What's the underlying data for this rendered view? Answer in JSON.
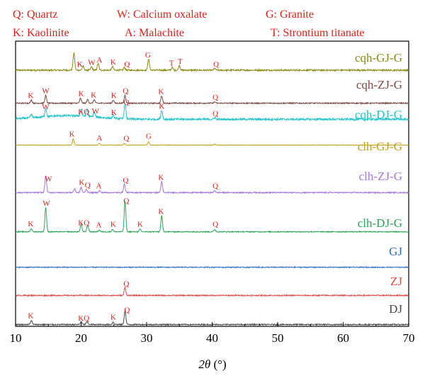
{
  "legend": [
    {
      "abbr": "Q",
      "text": "Q: Quartz"
    },
    {
      "abbr": "W",
      "text": "W: Calcium oxalate"
    },
    {
      "abbr": "G",
      "text": "G: Granite"
    },
    {
      "abbr": "K",
      "text": "K: Kaolinite"
    },
    {
      "abbr": "A",
      "text": "A: Malachite"
    },
    {
      "abbr": "T",
      "text": "T: Strontium titanate"
    }
  ],
  "colors": {
    "legend_text": "#e0201a",
    "marker_text": "#e0201a",
    "axis": "#000000"
  },
  "chart_data": {
    "type": "line",
    "title": "",
    "xlabel_parts": {
      "symbol": "2θ",
      "unit": " (°)"
    },
    "ylabel": "",
    "xlim": [
      10,
      70
    ],
    "xticks": [
      10,
      20,
      30,
      40,
      50,
      60,
      70
    ],
    "xtick_labels": [
      "10",
      "20",
      "30",
      "40",
      "50",
      "60",
      "70"
    ],
    "stacked_offset": true,
    "grid": false,
    "series": [
      {
        "name": "cqh-GJ-G",
        "color": "#8a8a16",
        "baseline": 0.8,
        "scale": 1.0,
        "peaks": [
          [
            18.9,
            5.6
          ],
          [
            20.3,
            1.3
          ],
          [
            21.6,
            1.1
          ],
          [
            22.6,
            2.2
          ],
          [
            24.8,
            1.2
          ],
          [
            26.6,
            0.9
          ],
          [
            30.3,
            3.6
          ],
          [
            33.9,
            0.9
          ],
          [
            35.0,
            1.5
          ],
          [
            40.4,
            0.6
          ]
        ],
        "markers": [
          {
            "x": 19.8,
            "label": "K"
          },
          {
            "x": 21.6,
            "label": "W"
          },
          {
            "x": 22.8,
            "label": "A"
          },
          {
            "x": 24.9,
            "label": "K"
          },
          {
            "x": 27.0,
            "label": "Q"
          },
          {
            "x": 30.2,
            "label": "G"
          },
          {
            "x": 33.8,
            "label": "T"
          },
          {
            "x": 35.1,
            "label": "T"
          },
          {
            "x": 40.6,
            "label": "Q"
          }
        ]
      },
      {
        "name": "cqh-ZJ-G",
        "color": "#7a4a44",
        "baseline": 0.6,
        "scale": 1.0,
        "peaks": [
          [
            12.4,
            1.0
          ],
          [
            14.6,
            2.5
          ],
          [
            19.9,
            1.6
          ],
          [
            21.0,
            1.2
          ],
          [
            22.0,
            1.1
          ],
          [
            24.9,
            1.0
          ],
          [
            26.7,
            2.6
          ],
          [
            32.3,
            2.3
          ],
          [
            40.4,
            0.4
          ]
        ],
        "markers": [
          {
            "x": 12.3,
            "label": "K"
          },
          {
            "x": 14.6,
            "label": "W"
          },
          {
            "x": 20.0,
            "label": "K"
          },
          {
            "x": 21.9,
            "label": "K"
          },
          {
            "x": 25.0,
            "label": "K"
          },
          {
            "x": 26.8,
            "label": "Q"
          },
          {
            "x": 32.2,
            "label": "K"
          },
          {
            "x": 40.5,
            "label": "Q"
          }
        ]
      },
      {
        "name": "cqh-DJ-G",
        "color": "#22c4c8",
        "baseline": 1.1,
        "scale": 1.0,
        "peaks": [
          [
            12.4,
            1.0
          ],
          [
            14.6,
            2.8
          ],
          [
            20.0,
            2.2
          ],
          [
            20.9,
            2.5
          ],
          [
            22.0,
            1.6
          ],
          [
            24.9,
            1.0
          ],
          [
            26.7,
            5.0
          ],
          [
            32.3,
            3.0
          ],
          [
            40.4,
            0.6
          ]
        ],
        "markers": [
          {
            "x": 14.6,
            "label": "W"
          },
          {
            "x": 20.4,
            "label": "KQ"
          },
          {
            "x": 22.2,
            "label": "W"
          },
          {
            "x": 25.0,
            "label": "K"
          },
          {
            "x": 26.9,
            "label": "Q"
          },
          {
            "x": 32.3,
            "label": "K"
          },
          {
            "x": 40.5,
            "label": "Q"
          }
        ]
      },
      {
        "name": "clh-GJ-G",
        "color": "#c59d18",
        "baseline": 0.2,
        "scale": 1.0,
        "peaks": [
          [
            18.8,
            2.0
          ],
          [
            22.8,
            0.5
          ],
          [
            26.6,
            0.5
          ],
          [
            30.3,
            1.1
          ],
          [
            40.4,
            0.3
          ]
        ],
        "markers": [
          {
            "x": 18.6,
            "label": "K"
          },
          {
            "x": 22.8,
            "label": "A"
          },
          {
            "x": 26.9,
            "label": "Q"
          },
          {
            "x": 30.3,
            "label": "G"
          }
        ]
      },
      {
        "name": "clh-ZJ-G",
        "color": "#a378d8",
        "baseline": 0.6,
        "scale": 1.0,
        "peaks": [
          [
            14.6,
            5.5
          ],
          [
            19.0,
            1.2
          ],
          [
            20.0,
            1.8
          ],
          [
            20.8,
            1.0
          ],
          [
            22.8,
            0.6
          ],
          [
            26.6,
            2.8
          ],
          [
            32.3,
            3.5
          ],
          [
            40.4,
            0.6
          ]
        ],
        "markers": [
          {
            "x": 15.0,
            "label": "W"
          },
          {
            "x": 20.1,
            "label": "K"
          },
          {
            "x": 21.0,
            "label": "Q"
          },
          {
            "x": 22.7,
            "label": "A"
          },
          {
            "x": 26.8,
            "label": "Q"
          },
          {
            "x": 32.2,
            "label": "K"
          },
          {
            "x": 40.5,
            "label": "Q"
          }
        ]
      },
      {
        "name": "clh-DJ-G",
        "color": "#2aa55a",
        "baseline": 0.5,
        "scale": 1.0,
        "peaks": [
          [
            12.4,
            1.0
          ],
          [
            14.6,
            8.0
          ],
          [
            20.0,
            2.4
          ],
          [
            21.0,
            2.2
          ],
          [
            22.8,
            0.6
          ],
          [
            24.8,
            0.8
          ],
          [
            26.7,
            10.0
          ],
          [
            29.0,
            0.8
          ],
          [
            32.3,
            5.2
          ],
          [
            40.4,
            0.8
          ]
        ],
        "markers": [
          {
            "x": 12.3,
            "label": "K"
          },
          {
            "x": 14.7,
            "label": "W"
          },
          {
            "x": 20.4,
            "label": "KQ"
          },
          {
            "x": 22.7,
            "label": "A"
          },
          {
            "x": 24.9,
            "label": "K"
          },
          {
            "x": 26.9,
            "label": "Q"
          },
          {
            "x": 29.0,
            "label": "K"
          },
          {
            "x": 32.2,
            "label": "K"
          },
          {
            "x": 40.5,
            "label": "Q"
          }
        ]
      },
      {
        "name": "GJ",
        "color": "#2a6fc4",
        "baseline": 0.5,
        "scale": 1.0,
        "peaks": [],
        "markers": []
      },
      {
        "name": "ZJ",
        "color": "#e04a4a",
        "baseline": 0.6,
        "scale": 1.0,
        "peaks": [
          [
            26.7,
            2.6
          ]
        ],
        "markers": [
          {
            "x": 26.9,
            "label": "Q"
          }
        ]
      },
      {
        "name": "DJ",
        "color": "#4a4a4a",
        "baseline": 0.6,
        "scale": 1.0,
        "peaks": [
          [
            12.4,
            1.3
          ],
          [
            20.0,
            0.9
          ],
          [
            20.9,
            0.9
          ],
          [
            24.9,
            0.8
          ],
          [
            26.7,
            4.5
          ]
        ],
        "markers": [
          {
            "x": 12.3,
            "label": "K"
          },
          {
            "x": 20.4,
            "label": "KQ"
          },
          {
            "x": 24.9,
            "label": "K"
          },
          {
            "x": 27.0,
            "label": "Q"
          }
        ]
      }
    ]
  }
}
